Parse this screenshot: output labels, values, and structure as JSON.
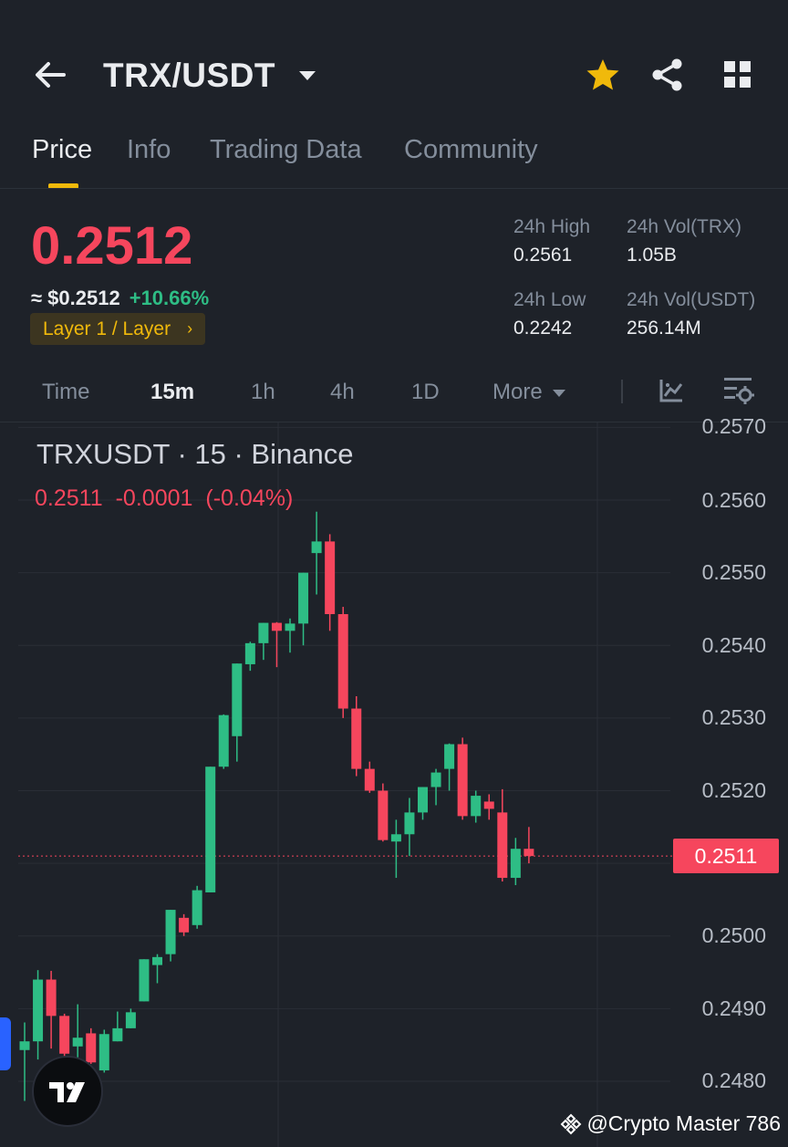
{
  "header": {
    "pair": "TRX/USDT",
    "icons": [
      "back-arrow-icon",
      "dropdown-caret-icon",
      "favorite-star-icon",
      "share-icon",
      "grid-menu-icon"
    ]
  },
  "tabs": [
    {
      "label": "Price",
      "active": true
    },
    {
      "label": "Info",
      "active": false
    },
    {
      "label": "Trading Data",
      "active": false
    },
    {
      "label": "Community",
      "active": false
    }
  ],
  "ticker": {
    "last_price": "0.2512",
    "usd_price": "≈ $0.2512",
    "change": "+10.66%",
    "tag": "Layer 1 / Layer",
    "high_label": "24h High",
    "high": "0.2561",
    "low_label": "24h Low",
    "low": "0.2242",
    "vol_trx_label": "24h Vol(TRX)",
    "vol_trx": "1.05B",
    "vol_usdt_label": "24h Vol(USDT)",
    "vol_usdt": "256.14M"
  },
  "timeframes": [
    {
      "label": "Time",
      "active": false
    },
    {
      "label": "15m",
      "active": true
    },
    {
      "label": "1h",
      "active": false
    },
    {
      "label": "4h",
      "active": false
    },
    {
      "label": "1D",
      "active": false
    },
    {
      "label": "More",
      "active": false
    }
  ],
  "colors": {
    "up": "#2ebd85",
    "down": "#f6465d",
    "accent": "#f0b90b",
    "bg": "#1e2229"
  },
  "watermark": "@Crypto Master 786",
  "chart_data": {
    "type": "candlestick",
    "title": "TRXUSDT · 15 · Binance",
    "ohlc_readout": {
      "close": "0.2511",
      "change": "-0.0001",
      "change_pct": "(-0.04%)"
    },
    "current_price_label": "0.2511",
    "current_price": 0.2511,
    "y_ticks": [
      "0.2570",
      "0.2560",
      "0.2550",
      "0.2540",
      "0.2530",
      "0.2520",
      "0.2500",
      "0.2490",
      "0.2480"
    ],
    "y_range": [
      0.24773,
      0.25705
    ],
    "candles": [
      {
        "o": 0.24843,
        "h": 0.24881,
        "l": 0.24773,
        "c": 0.24855
      },
      {
        "o": 0.24855,
        "h": 0.24953,
        "l": 0.2483,
        "c": 0.2494
      },
      {
        "o": 0.2494,
        "h": 0.24952,
        "l": 0.24845,
        "c": 0.2489
      },
      {
        "o": 0.2489,
        "h": 0.24893,
        "l": 0.2483,
        "c": 0.24838
      },
      {
        "o": 0.24848,
        "h": 0.24906,
        "l": 0.2483,
        "c": 0.2486
      },
      {
        "o": 0.24866,
        "h": 0.24873,
        "l": 0.24824,
        "c": 0.24826
      },
      {
        "o": 0.24815,
        "h": 0.24871,
        "l": 0.24812,
        "c": 0.24865
      },
      {
        "o": 0.24855,
        "h": 0.24896,
        "l": 0.24855,
        "c": 0.24873
      },
      {
        "o": 0.24873,
        "h": 0.249,
        "l": 0.24873,
        "c": 0.24895
      },
      {
        "o": 0.2491,
        "h": 0.24968,
        "l": 0.2491,
        "c": 0.24968
      },
      {
        "o": 0.2496,
        "h": 0.24975,
        "l": 0.24935,
        "c": 0.24971
      },
      {
        "o": 0.24975,
        "h": 0.25036,
        "l": 0.24965,
        "c": 0.25036
      },
      {
        "o": 0.25025,
        "h": 0.2503,
        "l": 0.25,
        "c": 0.25005
      },
      {
        "o": 0.25015,
        "h": 0.25069,
        "l": 0.2501,
        "c": 0.25063
      },
      {
        "o": 0.2506,
        "h": 0.25233,
        "l": 0.2506,
        "c": 0.25233
      },
      {
        "o": 0.25233,
        "h": 0.25305,
        "l": 0.2523,
        "c": 0.25304
      },
      {
        "o": 0.25275,
        "h": 0.25375,
        "l": 0.2524,
        "c": 0.25375
      },
      {
        "o": 0.25374,
        "h": 0.25405,
        "l": 0.25365,
        "c": 0.25403
      },
      {
        "o": 0.25403,
        "h": 0.25431,
        "l": 0.2538,
        "c": 0.25431
      },
      {
        "o": 0.25431,
        "h": 0.25432,
        "l": 0.2537,
        "c": 0.2542
      },
      {
        "o": 0.2542,
        "h": 0.25437,
        "l": 0.2539,
        "c": 0.2543
      },
      {
        "o": 0.2543,
        "h": 0.255,
        "l": 0.254,
        "c": 0.255
      },
      {
        "o": 0.25527,
        "h": 0.25584,
        "l": 0.2547,
        "c": 0.25543
      },
      {
        "o": 0.25543,
        "h": 0.25553,
        "l": 0.2542,
        "c": 0.25443
      },
      {
        "o": 0.25443,
        "h": 0.25453,
        "l": 0.253,
        "c": 0.25313
      },
      {
        "o": 0.25313,
        "h": 0.2533,
        "l": 0.2522,
        "c": 0.2523
      },
      {
        "o": 0.2523,
        "h": 0.2524,
        "l": 0.25197,
        "c": 0.252
      },
      {
        "o": 0.252,
        "h": 0.2521,
        "l": 0.2513,
        "c": 0.25132
      },
      {
        "o": 0.2513,
        "h": 0.2516,
        "l": 0.2508,
        "c": 0.2514
      },
      {
        "o": 0.2514,
        "h": 0.2519,
        "l": 0.2511,
        "c": 0.2517
      },
      {
        "o": 0.2517,
        "h": 0.25205,
        "l": 0.2516,
        "c": 0.25205
      },
      {
        "o": 0.25205,
        "h": 0.2523,
        "l": 0.2518,
        "c": 0.25225
      },
      {
        "o": 0.2523,
        "h": 0.25265,
        "l": 0.252,
        "c": 0.25264
      },
      {
        "o": 0.25264,
        "h": 0.25273,
        "l": 0.2516,
        "c": 0.25165
      },
      {
        "o": 0.25165,
        "h": 0.252,
        "l": 0.25156,
        "c": 0.25193
      },
      {
        "o": 0.25185,
        "h": 0.25195,
        "l": 0.2516,
        "c": 0.25175
      },
      {
        "o": 0.2517,
        "h": 0.25202,
        "l": 0.25075,
        "c": 0.2508
      },
      {
        "o": 0.2508,
        "h": 0.25135,
        "l": 0.2507,
        "c": 0.2512
      },
      {
        "o": 0.2512,
        "h": 0.2515,
        "l": 0.251,
        "c": 0.2511
      }
    ]
  }
}
